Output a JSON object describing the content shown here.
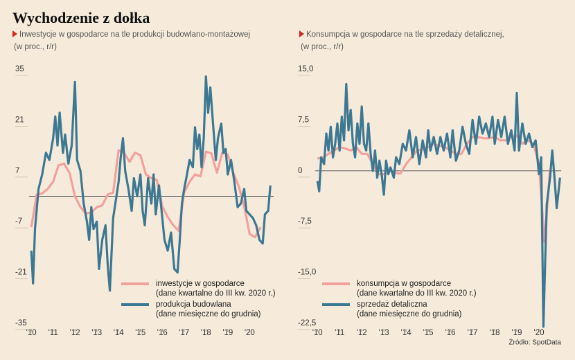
{
  "title": "Wychodzenie z dołka",
  "source": "Źródło: SpotData",
  "chart_data": [
    {
      "type": "line",
      "title": "Inwestycje w gospodarce na tle produkcji budowlano-montażowej",
      "subtitle": "(w proc., r/r)",
      "xlim": [
        2009.9,
        2021.1
      ],
      "ylim": [
        -35,
        35
      ],
      "yticks": [
        -35,
        -21,
        -7,
        7,
        21,
        35
      ],
      "xticks": [
        {
          "value": 2010,
          "label": "'10"
        },
        {
          "value": 2011,
          "label": "'11"
        },
        {
          "value": 2012,
          "label": "'12"
        },
        {
          "value": 2013,
          "label": "'13"
        },
        {
          "value": 2014,
          "label": "'14"
        },
        {
          "value": 2015,
          "label": "'15"
        },
        {
          "value": 2016,
          "label": "'16"
        },
        {
          "value": 2017,
          "label": "'17"
        },
        {
          "value": 2018,
          "label": "'18"
        },
        {
          "value": 2019,
          "label": "'19"
        },
        {
          "value": 2020,
          "label": "'20"
        }
      ],
      "grid": true,
      "series": [
        {
          "name": "inwestycje w gospodarce",
          "note": "(dane kwartalne do III kw. 2020 r.)",
          "color": "#f3a09c",
          "x": [
            2010,
            2010.25,
            2010.5,
            2010.75,
            2011,
            2011.25,
            2011.5,
            2011.75,
            2012,
            2012.25,
            2012.5,
            2012.75,
            2013,
            2013.25,
            2013.5,
            2013.75,
            2014,
            2014.25,
            2014.5,
            2014.75,
            2015,
            2015.25,
            2015.5,
            2015.75,
            2016,
            2016.25,
            2016.5,
            2016.75,
            2017,
            2017.25,
            2017.5,
            2017.75,
            2018,
            2018.25,
            2018.5,
            2018.75,
            2019,
            2019.25,
            2019.5,
            2019.75,
            2020,
            2020.25,
            2020.5
          ],
          "values": [
            -8.5,
            0.5,
            0.8,
            2,
            4,
            8.5,
            9,
            6.5,
            0,
            -3,
            -4.7,
            -4.5,
            -3,
            -2.5,
            0.5,
            1,
            12.7,
            12,
            9.5,
            12,
            11.3,
            6,
            5,
            4.5,
            -2.8,
            -5.7,
            -8,
            -9.5,
            1,
            4,
            6,
            5.5,
            12.3,
            11.8,
            6.5,
            12,
            11.5,
            6.5,
            2.8,
            -2.8,
            -10.4,
            -11.3,
            -8.5
          ]
        },
        {
          "name": "produkcja budowlana",
          "note": "(dane miesięczne do grudnia)",
          "color": "#3d7893",
          "x": [
            2010,
            2010.08,
            2010.17,
            2010.33,
            2010.5,
            2010.67,
            2010.83,
            2011,
            2011.1,
            2011.2,
            2011.3,
            2011.45,
            2011.55,
            2011.7,
            2011.85,
            2012,
            2012.1,
            2012.25,
            2012.4,
            2012.55,
            2012.65,
            2012.75,
            2012.85,
            2013,
            2013.1,
            2013.25,
            2013.4,
            2013.5,
            2013.6,
            2013.75,
            2013.85,
            2014,
            2014.1,
            2014.2,
            2014.3,
            2014.45,
            2014.6,
            2014.7,
            2014.85,
            2015,
            2015.1,
            2015.2,
            2015.35,
            2015.5,
            2015.6,
            2015.7,
            2015.85,
            2016,
            2016.1,
            2016.25,
            2016.4,
            2016.55,
            2016.7,
            2016.8,
            2016.9,
            2017,
            2017.1,
            2017.25,
            2017.4,
            2017.5,
            2017.6,
            2017.7,
            2017.8,
            2017.9,
            2018,
            2018.1,
            2018.2,
            2018.35,
            2018.45,
            2018.55,
            2018.7,
            2018.8,
            2018.9,
            2019,
            2019.15,
            2019.3,
            2019.45,
            2019.6,
            2019.75,
            2019.85,
            2020,
            2020.15,
            2020.3,
            2020.45,
            2020.6,
            2020.7,
            2020.85,
            2020.95
          ],
          "values": [
            -15,
            -24,
            -9,
            2,
            6,
            12,
            10,
            16,
            22,
            14,
            23,
            12,
            17,
            9,
            14,
            31.5,
            10,
            7,
            -2,
            -7,
            -12,
            -3,
            -9,
            -7,
            -20,
            -12,
            -8,
            -19,
            -26,
            -6,
            -2,
            4,
            11,
            16,
            7,
            2,
            -4,
            5,
            0,
            6,
            -4,
            -8,
            5,
            -2,
            6,
            -5,
            3,
            -6,
            -12,
            -15,
            -10,
            -20,
            -21,
            -12,
            -2,
            2,
            5,
            10,
            8,
            19,
            13,
            17,
            8,
            16,
            33,
            23,
            30,
            18,
            10,
            16,
            20,
            12,
            13,
            6,
            10,
            4,
            -3,
            -2,
            2,
            -4,
            -5,
            -6,
            -8,
            -12,
            -13,
            -5,
            -4,
            3
          ]
        }
      ]
    },
    {
      "type": "line",
      "title": "Konsumpcja w gospodarce na tle sprzedaży detalicznej,",
      "subtitle": "(w proc., r/r)",
      "xlim": [
        2009.9,
        2021.0
      ],
      "ylim": [
        -22.5,
        15
      ],
      "yticks": [
        {
          "value": -22.5,
          "label": "-22,5"
        },
        {
          "value": -15,
          "label": "-15,0"
        },
        {
          "value": -7.5,
          "label": "-7,5"
        },
        0,
        {
          "value": 7.5,
          "label": "7,5"
        },
        {
          "value": 15,
          "label": "15,0"
        }
      ],
      "xticks": [
        {
          "value": 2010,
          "label": "'10"
        },
        {
          "value": 2011,
          "label": "'11"
        },
        {
          "value": 2012,
          "label": "'12"
        },
        {
          "value": 2013,
          "label": "'13"
        },
        {
          "value": 2014,
          "label": "'14"
        },
        {
          "value": 2015,
          "label": "'15"
        },
        {
          "value": 2016,
          "label": "'16"
        },
        {
          "value": 2017,
          "label": "'17"
        },
        {
          "value": 2018,
          "label": "'18"
        },
        {
          "value": 2019,
          "label": "'19"
        },
        {
          "value": 2020,
          "label": "'20"
        }
      ],
      "grid": true,
      "series": [
        {
          "name": "konsumpcja w gospodarce",
          "note": "(dane kwartalne do III kw. 2020 r.)",
          "color": "#f3a09c",
          "x": [
            2010,
            2010.25,
            2010.5,
            2010.75,
            2011,
            2011.25,
            2011.5,
            2011.75,
            2012,
            2012.25,
            2012.5,
            2012.75,
            2013,
            2013.25,
            2013.5,
            2013.75,
            2014,
            2014.25,
            2014.5,
            2014.75,
            2015,
            2015.25,
            2015.5,
            2015.75,
            2016,
            2016.25,
            2016.5,
            2016.75,
            2017,
            2017.25,
            2017.5,
            2017.75,
            2018,
            2018.25,
            2018.5,
            2018.75,
            2019,
            2019.25,
            2019.5,
            2019.75,
            2020,
            2020.25,
            2020.5
          ],
          "values": [
            1.8,
            2,
            2.5,
            3,
            3.5,
            3.3,
            3,
            3.5,
            2.5,
            2.5,
            1,
            -0.5,
            -0.5,
            0,
            -0.3,
            -0.4,
            1,
            2,
            3,
            3.2,
            3.5,
            4,
            3.7,
            3.5,
            3,
            2.5,
            2.5,
            4,
            5,
            5,
            4.8,
            4.8,
            5,
            4.5,
            4.5,
            5,
            5.2,
            4,
            4.5,
            4,
            1,
            -10.5,
            0.3
          ]
        },
        {
          "name": "sprzedaż detaliczna",
          "note": "(dane miesięczne do grudnia)",
          "color": "#3d7893",
          "x": [
            2010,
            2010.08,
            2010.17,
            2010.3,
            2010.4,
            2010.5,
            2010.6,
            2010.7,
            2010.8,
            2010.9,
            2011,
            2011.1,
            2011.2,
            2011.3,
            2011.4,
            2011.5,
            2011.6,
            2011.7,
            2011.8,
            2011.9,
            2012,
            2012.1,
            2012.2,
            2012.3,
            2012.4,
            2012.5,
            2012.6,
            2012.7,
            2012.8,
            2012.9,
            2013,
            2013.1,
            2013.2,
            2013.3,
            2013.45,
            2013.55,
            2013.7,
            2013.85,
            2014,
            2014.15,
            2014.3,
            2014.45,
            2014.6,
            2014.75,
            2014.9,
            2015,
            2015.1,
            2015.25,
            2015.4,
            2015.55,
            2015.7,
            2015.85,
            2016,
            2016.1,
            2016.25,
            2016.4,
            2016.55,
            2016.7,
            2016.85,
            2017,
            2017.15,
            2017.3,
            2017.45,
            2017.6,
            2017.75,
            2017.9,
            2018,
            2018.15,
            2018.3,
            2018.45,
            2018.6,
            2018.75,
            2018.9,
            2019,
            2019.1,
            2019.25,
            2019.4,
            2019.55,
            2019.7,
            2019.85,
            2020,
            2020.1,
            2020.2,
            2020.35,
            2020.5,
            2020.6,
            2020.7,
            2020.8,
            2020.95
          ],
          "values": [
            -1.5,
            -3,
            2,
            1,
            5.5,
            3,
            6.5,
            2,
            4,
            7,
            3,
            8,
            4.5,
            12.8,
            6,
            9,
            4,
            2,
            7,
            4,
            9.5,
            4,
            3,
            7,
            2.5,
            0,
            3,
            -1,
            1.5,
            -0.5,
            -3.5,
            1.5,
            -0.5,
            0.5,
            -1,
            2,
            1,
            4,
            3,
            6,
            2,
            5,
            1,
            4.5,
            2,
            6,
            3,
            5,
            2.5,
            5,
            3,
            5.5,
            2,
            6,
            1.5,
            3,
            6.5,
            4,
            2.5,
            7.5,
            4,
            8,
            5.5,
            7,
            5,
            8,
            4,
            7.5,
            5,
            8,
            4,
            6,
            3,
            11.5,
            3,
            7,
            4,
            5.5,
            3.5,
            4.5,
            -0.5,
            2,
            -23,
            -5,
            -1,
            3,
            -1,
            -5.5,
            -1
          ]
        }
      ]
    }
  ]
}
